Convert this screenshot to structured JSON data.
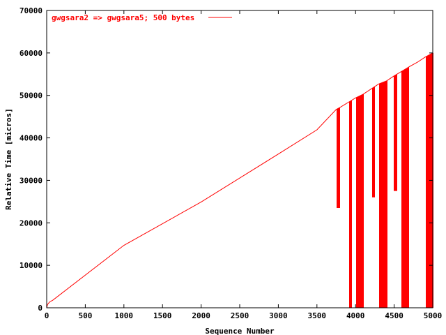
{
  "chart_data": {
    "type": "line",
    "title": "",
    "xlabel": "Sequence Number",
    "ylabel": "Relative Time [micros]",
    "xlim": [
      0,
      5000
    ],
    "ylim": [
      0,
      70000
    ],
    "x_ticks": [
      0,
      500,
      1000,
      1500,
      2000,
      2500,
      3000,
      3500,
      4000,
      4500,
      5000
    ],
    "y_ticks": [
      0,
      10000,
      20000,
      30000,
      40000,
      50000,
      60000,
      70000
    ],
    "grid": false,
    "legend_position": "top-left",
    "series": [
      {
        "name": "gwgsara2 => gwgsara5; 500 bytes",
        "color": "#ff0000",
        "points": [
          [
            0,
            0
          ],
          [
            10,
            700
          ],
          [
            20,
            1000
          ],
          [
            40,
            1400
          ],
          [
            80,
            1800
          ],
          [
            1000,
            14700
          ],
          [
            2000,
            24900
          ],
          [
            3000,
            36200
          ],
          [
            3500,
            41900
          ],
          [
            3750,
            46700
          ],
          [
            3800,
            47200
          ],
          [
            4000,
            49400
          ],
          [
            4100,
            50300
          ],
          [
            4300,
            52700
          ],
          [
            4400,
            53400
          ],
          [
            4500,
            54600
          ],
          [
            4600,
            55700
          ],
          [
            4700,
            56800
          ],
          [
            4800,
            57800
          ],
          [
            4900,
            59000
          ],
          [
            5000,
            60000
          ]
        ],
        "drops": [
          {
            "from": 3760,
            "to": 3790,
            "min": 23500
          },
          {
            "from": 3920,
            "to": 3940,
            "min": 0
          },
          {
            "from": 4010,
            "to": 4090,
            "min": 0
          },
          {
            "from": 4220,
            "to": 4240,
            "min": 26000
          },
          {
            "from": 4310,
            "to": 4400,
            "min": 0
          },
          {
            "from": 4500,
            "to": 4530,
            "min": 27500
          },
          {
            "from": 4600,
            "to": 4680,
            "min": 0
          },
          {
            "from": 4910,
            "to": 5000,
            "min": 0
          }
        ]
      }
    ]
  }
}
